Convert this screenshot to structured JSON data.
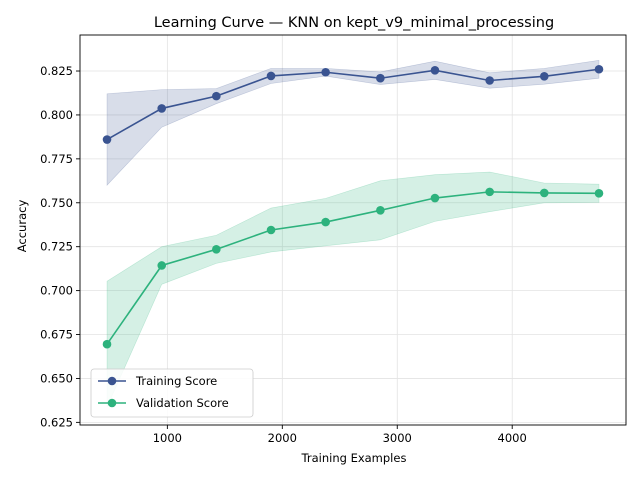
{
  "chart_data": {
    "type": "line",
    "title": "Learning Curve — KNN on kept_v9_minimal_processing",
    "xlabel": "Training Examples",
    "ylabel": "Accuracy",
    "xlim": [
      240,
      4990
    ],
    "ylim": [
      0.6235,
      0.8455
    ],
    "xticks": [
      1000,
      2000,
      3000,
      4000
    ],
    "yticks": [
      0.625,
      0.65,
      0.675,
      0.7,
      0.725,
      0.75,
      0.775,
      0.8,
      0.825
    ],
    "xtick_labels": [
      "1000",
      "2000",
      "3000",
      "4000"
    ],
    "ytick_labels": [
      "0.625",
      "0.650",
      "0.675",
      "0.700",
      "0.725",
      "0.750",
      "0.775",
      "0.800",
      "0.825"
    ],
    "grid": true,
    "legend_position": "lower-left",
    "x": [
      475,
      951,
      1426,
      1902,
      2377,
      2853,
      3328,
      3804,
      4279,
      4755
    ],
    "series": [
      {
        "name": "Training Score",
        "color": "#3a5491",
        "band_color": "#3a5491",
        "values": [
          0.786,
          0.8037,
          0.8107,
          0.8222,
          0.8243,
          0.8209,
          0.8254,
          0.8196,
          0.822,
          0.826
        ],
        "upper": [
          0.812,
          0.8144,
          0.815,
          0.8265,
          0.8265,
          0.8245,
          0.8306,
          0.824,
          0.8265,
          0.8311
        ],
        "lower": [
          0.76,
          0.793,
          0.8064,
          0.8179,
          0.8221,
          0.8173,
          0.8202,
          0.8152,
          0.8175,
          0.8209
        ]
      },
      {
        "name": "Validation Score",
        "color": "#2db27d",
        "band_color": "#2db27d",
        "values": [
          0.6695,
          0.7143,
          0.7235,
          0.7345,
          0.739,
          0.7457,
          0.7527,
          0.7562,
          0.7556,
          0.7554
        ],
        "upper": [
          0.7053,
          0.725,
          0.7315,
          0.747,
          0.7525,
          0.7625,
          0.766,
          0.7675,
          0.7612,
          0.7606
        ],
        "lower": [
          0.6337,
          0.7036,
          0.7155,
          0.722,
          0.7255,
          0.7289,
          0.7394,
          0.7449,
          0.75,
          0.7502
        ]
      }
    ]
  }
}
